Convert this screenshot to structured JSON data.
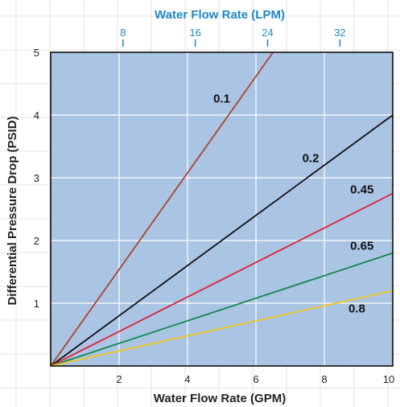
{
  "chart_data": {
    "type": "line",
    "title": "",
    "xlabel": "Water Flow Rate (GPM)",
    "ylabel": "Differential Pressure Drop (PSID)",
    "x2label": "Water Flow Rate (LPM)",
    "xlim": [
      0,
      10
    ],
    "ylim": [
      0,
      5
    ],
    "x_ticks": [
      2,
      4,
      6,
      8,
      10
    ],
    "y_ticks": [
      1,
      2,
      3,
      4,
      5
    ],
    "x2_ticks": [
      8,
      16,
      24,
      32
    ],
    "x2_per_x": 3.785,
    "grid": true,
    "background": "#aac4e4",
    "series": [
      {
        "name": "0.1",
        "color": "#a8462c",
        "x": [
          0,
          6.5
        ],
        "y": [
          0,
          5.0
        ]
      },
      {
        "name": "0.2",
        "color": "#111111",
        "x": [
          0,
          10
        ],
        "y": [
          0,
          4.0
        ]
      },
      {
        "name": "0.45",
        "color": "#e0203c",
        "x": [
          0,
          10
        ],
        "y": [
          0,
          2.75
        ]
      },
      {
        "name": "0.65",
        "color": "#13894a",
        "x": [
          0,
          10
        ],
        "y": [
          0,
          1.8
        ]
      },
      {
        "name": "0.8",
        "color": "#f2c81e",
        "x": [
          0,
          10
        ],
        "y": [
          0,
          1.2
        ]
      }
    ]
  }
}
